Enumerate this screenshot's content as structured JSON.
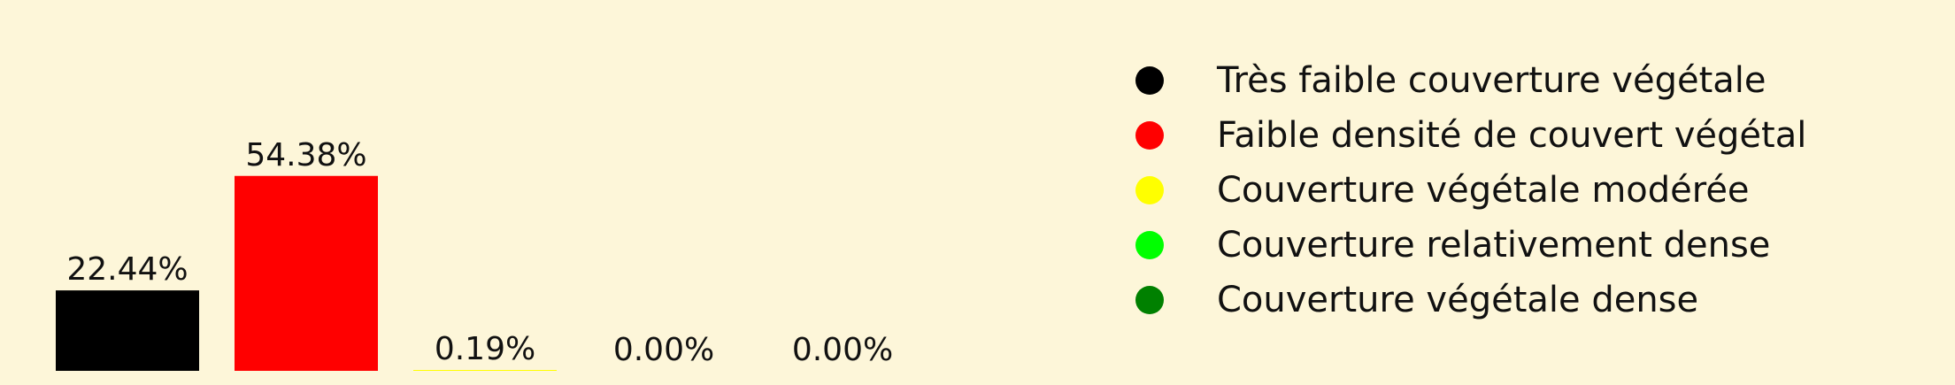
{
  "chart_data": {
    "type": "bar",
    "categories": [
      "Très faible couverture végétale",
      "Faible densité de couvert végétal",
      "Couverture végétale modérée",
      "Couverture relativement dense",
      "Couverture végétale dense"
    ],
    "values": [
      22.44,
      54.38,
      0.19,
      0.0,
      0.0
    ],
    "value_labels": [
      "22.44%",
      "54.38%",
      "0.19%",
      "0.00%",
      "0.00%"
    ],
    "colors": [
      "#000000",
      "#ff0000",
      "#ffff00",
      "#00ff00",
      "#008000"
    ],
    "title": "",
    "xlabel": "",
    "ylabel": "",
    "ylim": [
      0,
      60
    ],
    "grid": false,
    "axes_visible": false,
    "legend_position": "right",
    "legend": [
      {
        "label": "Très faible couverture végétale",
        "color": "#000000"
      },
      {
        "label": "Faible densité de couvert végétal",
        "color": "#ff0000"
      },
      {
        "label": "Couverture végétale modérée",
        "color": "#ffff00"
      },
      {
        "label": "Couverture relativement dense",
        "color": "#00ff00"
      },
      {
        "label": "Couverture végétale dense",
        "color": "#008000"
      }
    ]
  }
}
